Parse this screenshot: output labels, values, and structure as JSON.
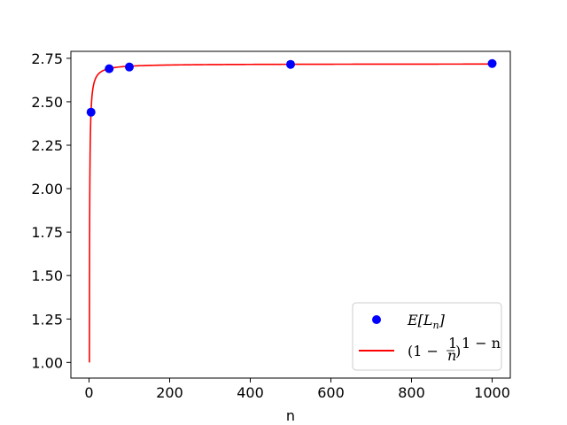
{
  "chart_data": {
    "type": "scatter",
    "title": "",
    "xlabel": "n",
    "ylabel": "",
    "xlim": [
      -45,
      1045
    ],
    "ylim": [
      0.91,
      2.79
    ],
    "x_ticks": [
      0,
      200,
      400,
      600,
      800,
      1000
    ],
    "x_tick_labels": [
      "0",
      "200",
      "400",
      "600",
      "800",
      "1000"
    ],
    "y_ticks": [
      1.0,
      1.25,
      1.5,
      1.75,
      2.0,
      2.25,
      2.5,
      2.75
    ],
    "y_tick_labels": [
      "1.00",
      "1.25",
      "1.50",
      "1.75",
      "2.00",
      "2.25",
      "2.50",
      "2.75"
    ],
    "grid": false,
    "legend_position": "lower right",
    "series": [
      {
        "name": "E[L_n]",
        "kind": "scatter",
        "color": "#0000ff",
        "x": [
          5,
          50,
          100,
          500,
          1000
        ],
        "y": [
          2.44,
          2.69,
          2.7,
          2.715,
          2.72
        ]
      },
      {
        "name": "(1 - 1/n)^(1-n)",
        "kind": "line",
        "color": "#ff0000",
        "function": "(1 - 1/n)^(1 - n)",
        "x_range": [
          1,
          1000
        ]
      }
    ]
  },
  "legend": {
    "scatter_label": "E[L",
    "scatter_sub": "n",
    "scatter_close": "]",
    "line_label_prefix": "(1 − ",
    "line_label_frac_num": "1",
    "line_label_frac_den": "n",
    "line_label_mid": ")",
    "line_label_exp": "1 − n"
  }
}
